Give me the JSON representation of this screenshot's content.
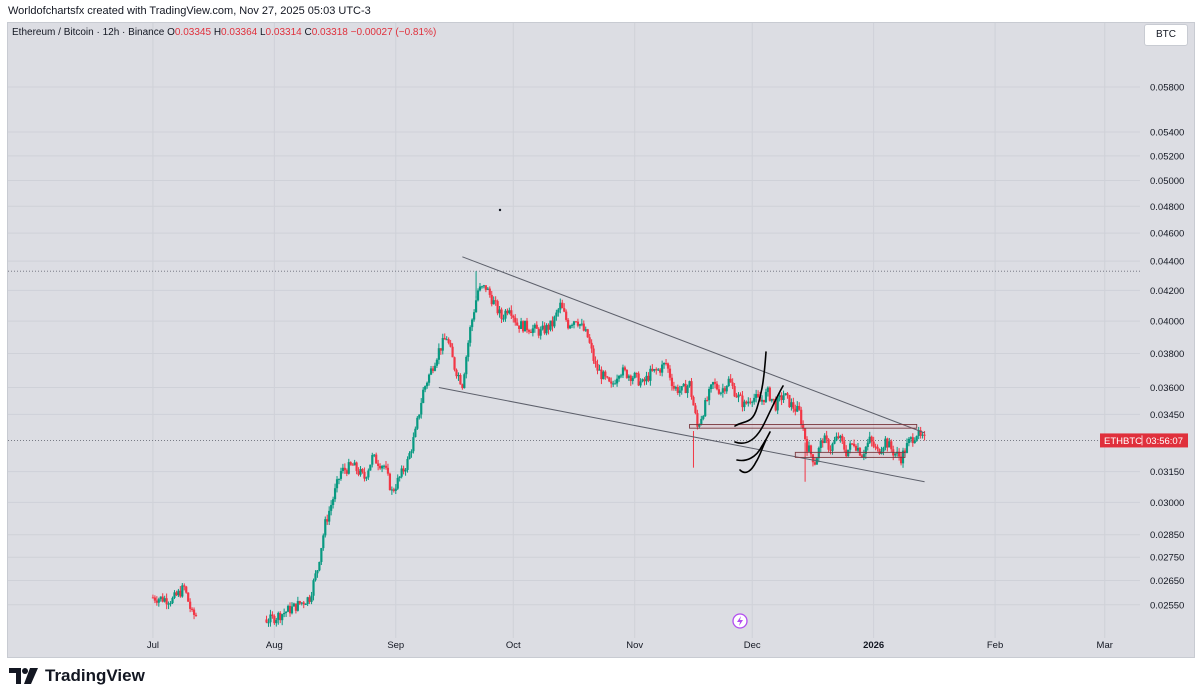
{
  "header": {
    "credit": "Worldofchartsfx created with TradingView.com, Nov 27, 2025 05:03 UTC-3",
    "symbol_desc": "Ethereum / Bitcoin · 12h · Binance",
    "o_label": "O",
    "o_value": "0.03345",
    "h_label": "H",
    "h_value": "0.03364",
    "l_label": "L",
    "l_value": "0.03314",
    "c_label": "C",
    "c_value": "0.03318",
    "change": "−0.00027 (−0.81%)",
    "currency": "BTC"
  },
  "footer": {
    "brand": "TradingView"
  },
  "colors": {
    "up": "#089981",
    "down": "#f23645",
    "background": "#dcdde3",
    "price_tag": "#e0303c",
    "drawing": "#000000",
    "trendline": "#5d606b"
  },
  "chart_data": {
    "type": "candlestick",
    "symbol": "ETHBTC",
    "interval": "12h",
    "current_price_label": "ETHBTC",
    "countdown": "03:56:07",
    "y_axis": {
      "scale": "log",
      "ticks": [
        "0.05800",
        "0.05400",
        "0.05200",
        "0.05000",
        "0.04800",
        "0.04600",
        "0.04400",
        "0.04200",
        "0.04000",
        "0.03800",
        "0.03600",
        "0.03450",
        "0.03150",
        "0.03000",
        "0.02850",
        "0.02750",
        "0.02650",
        "0.02550"
      ],
      "ylim": [
        0.0245,
        0.062
      ]
    },
    "x_axis": {
      "ticks": [
        "Jul",
        "Aug",
        "Sep",
        "Oct",
        "Nov",
        "Dec",
        "2026",
        "Feb",
        "Mar"
      ]
    },
    "x_domain_days": [
      -37,
      252
    ],
    "close_path": [
      {
        "d": 0,
        "p": 0.0258
      },
      {
        "d": 5,
        "p": 0.0257
      },
      {
        "d": 8,
        "p": 0.0262
      },
      {
        "d": 10,
        "p": 0.0251
      },
      {
        "d": 30,
        "p": 0.0249
      },
      {
        "d": 36,
        "p": 0.0254
      },
      {
        "d": 40,
        "p": 0.0258
      },
      {
        "d": 42,
        "p": 0.027
      },
      {
        "d": 44,
        "p": 0.029
      },
      {
        "d": 46,
        "p": 0.0302
      },
      {
        "d": 48,
        "p": 0.0315
      },
      {
        "d": 51,
        "p": 0.0318
      },
      {
        "d": 54,
        "p": 0.0312
      },
      {
        "d": 56,
        "p": 0.0322
      },
      {
        "d": 59,
        "p": 0.0318
      },
      {
        "d": 61,
        "p": 0.0305
      },
      {
        "d": 63,
        "p": 0.0312
      },
      {
        "d": 65,
        "p": 0.032
      },
      {
        "d": 67,
        "p": 0.0335
      },
      {
        "d": 69,
        "p": 0.0358
      },
      {
        "d": 71,
        "p": 0.037
      },
      {
        "d": 73,
        "p": 0.0382
      },
      {
        "d": 75,
        "p": 0.039
      },
      {
        "d": 77,
        "p": 0.0372
      },
      {
        "d": 79,
        "p": 0.0362
      },
      {
        "d": 81,
        "p": 0.0395
      },
      {
        "d": 83,
        "p": 0.042
      },
      {
        "d": 85,
        "p": 0.0422
      },
      {
        "d": 87,
        "p": 0.0412
      },
      {
        "d": 89,
        "p": 0.0402
      },
      {
        "d": 91,
        "p": 0.041
      },
      {
        "d": 93,
        "p": 0.0398
      },
      {
        "d": 96,
        "p": 0.0396
      },
      {
        "d": 99,
        "p": 0.0393
      },
      {
        "d": 102,
        "p": 0.0398
      },
      {
        "d": 104,
        "p": 0.041
      },
      {
        "d": 106,
        "p": 0.0398
      },
      {
        "d": 108,
        "p": 0.0402
      },
      {
        "d": 111,
        "p": 0.039
      },
      {
        "d": 113,
        "p": 0.0372
      },
      {
        "d": 115,
        "p": 0.0366
      },
      {
        "d": 117,
        "p": 0.036
      },
      {
        "d": 119,
        "p": 0.037
      },
      {
        "d": 121,
        "p": 0.0368
      },
      {
        "d": 123,
        "p": 0.0366
      },
      {
        "d": 125,
        "p": 0.0362
      },
      {
        "d": 127,
        "p": 0.0368
      },
      {
        "d": 129,
        "p": 0.037
      },
      {
        "d": 131,
        "p": 0.0374
      },
      {
        "d": 133,
        "p": 0.036
      },
      {
        "d": 135,
        "p": 0.0358
      },
      {
        "d": 137,
        "p": 0.0362
      },
      {
        "d": 139,
        "p": 0.0338
      },
      {
        "d": 141,
        "p": 0.035
      },
      {
        "d": 143,
        "p": 0.0362
      },
      {
        "d": 145,
        "p": 0.0358
      },
      {
        "d": 147,
        "p": 0.0364
      },
      {
        "d": 149,
        "p": 0.0356
      },
      {
        "d": 151,
        "p": 0.035
      },
      {
        "d": 153,
        "p": 0.0355
      },
      {
        "d": 155,
        "p": 0.0352
      },
      {
        "d": 157,
        "p": 0.0357
      },
      {
        "d": 159,
        "p": 0.035
      },
      {
        "d": 161,
        "p": 0.0356
      },
      {
        "d": 163,
        "p": 0.035
      },
      {
        "d": 165,
        "p": 0.0346
      },
      {
        "d": 167,
        "p": 0.0328
      },
      {
        "d": 169,
        "p": 0.032
      },
      {
        "d": 171,
        "p": 0.0332
      },
      {
        "d": 173,
        "p": 0.0327
      },
      {
        "d": 175,
        "p": 0.0333
      },
      {
        "d": 177,
        "p": 0.0325
      },
      {
        "d": 179,
        "p": 0.033
      },
      {
        "d": 181,
        "p": 0.0324
      },
      {
        "d": 183,
        "p": 0.0331
      },
      {
        "d": 185,
        "p": 0.0325
      },
      {
        "d": 187,
        "p": 0.0331
      },
      {
        "d": 189,
        "p": 0.0325
      },
      {
        "d": 191,
        "p": 0.0322
      },
      {
        "d": 193,
        "p": 0.033
      },
      {
        "d": 195,
        "p": 0.0335
      },
      {
        "d": 196,
        "p": 0.0332
      },
      {
        "d": 197,
        "p": 0.0331
      }
    ],
    "trendlines": [
      {
        "from": {
          "d": 79,
          "p": 0.0443
        },
        "to": {
          "d": 197,
          "p": 0.0335
        }
      },
      {
        "from": {
          "d": 73,
          "p": 0.036
        },
        "to": {
          "d": 197,
          "p": 0.031
        }
      }
    ],
    "zones": [
      {
        "d1": 137,
        "d2": 195,
        "p_top": 0.03395,
        "p_bot": 0.03375
      },
      {
        "d1": 164,
        "d2": 192,
        "p_top": 0.03248,
        "p_bot": 0.03222
      }
    ],
    "reference_price": 0.0433
  }
}
